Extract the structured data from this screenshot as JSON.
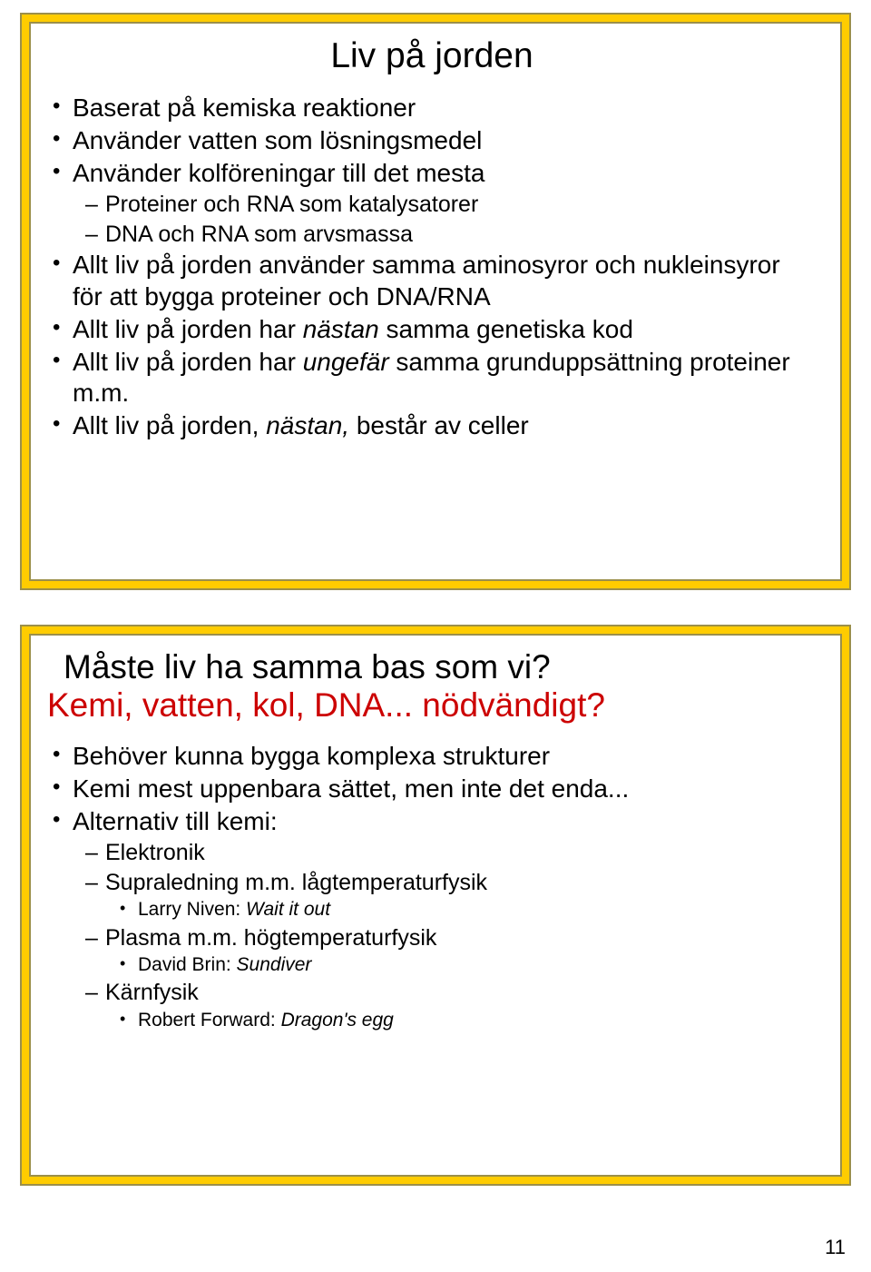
{
  "colors": {
    "slide_bg": "#ffcc00",
    "border": "#9b8f4a",
    "inner_bg": "#ffffff",
    "text": "#000000",
    "accent": "#cc0000"
  },
  "slide1": {
    "title": "Liv på jorden",
    "bullets": [
      {
        "level": 1,
        "text": "Baserat på kemiska reaktioner"
      },
      {
        "level": 1,
        "text": "Använder vatten som lösningsmedel"
      },
      {
        "level": 1,
        "text": "Använder kolföreningar till det mesta"
      },
      {
        "level": 2,
        "text": "Proteiner och RNA som katalysatorer"
      },
      {
        "level": 2,
        "text": "DNA och RNA som arvsmassa"
      },
      {
        "level": 1,
        "text": "Allt liv på jorden använder samma aminosyror och nukleinsyror för att bygga proteiner och DNA/RNA"
      },
      {
        "level": 1,
        "pre": "Allt liv på jorden har ",
        "ital": "nästan",
        "post": " samma genetiska kod"
      },
      {
        "level": 1,
        "pre": "Allt liv på jorden har ",
        "ital": "ungefär",
        "post": " samma grunduppsättning proteiner m.m."
      },
      {
        "level": 1,
        "pre": "Allt liv på jorden, ",
        "ital": "nästan,",
        "post": " består av celler"
      }
    ]
  },
  "slide2": {
    "title_line1": "Måste liv ha samma bas som vi?",
    "title_line2": "Kemi, vatten, kol, DNA... nödvändigt?",
    "bullets": [
      {
        "level": 1,
        "text": "Behöver kunna bygga komplexa strukturer"
      },
      {
        "level": 1,
        "text": "Kemi mest uppenbara sättet, men inte det enda..."
      },
      {
        "level": 1,
        "text": "Alternativ till kemi:"
      },
      {
        "level": 2,
        "text": "Elektronik"
      },
      {
        "level": 2,
        "text": "Supraledning m.m. lågtemperaturfysik"
      },
      {
        "level": 3,
        "pre": "Larry Niven: ",
        "ital": "Wait it out"
      },
      {
        "level": 2,
        "text": "Plasma m.m. högtemperaturfysik"
      },
      {
        "level": 3,
        "pre": "David Brin: ",
        "ital": "Sundiver"
      },
      {
        "level": 2,
        "text": "Kärnfysik"
      },
      {
        "level": 3,
        "pre": "Robert Forward: ",
        "ital": "Dragon's egg"
      }
    ]
  },
  "page_number": "11"
}
